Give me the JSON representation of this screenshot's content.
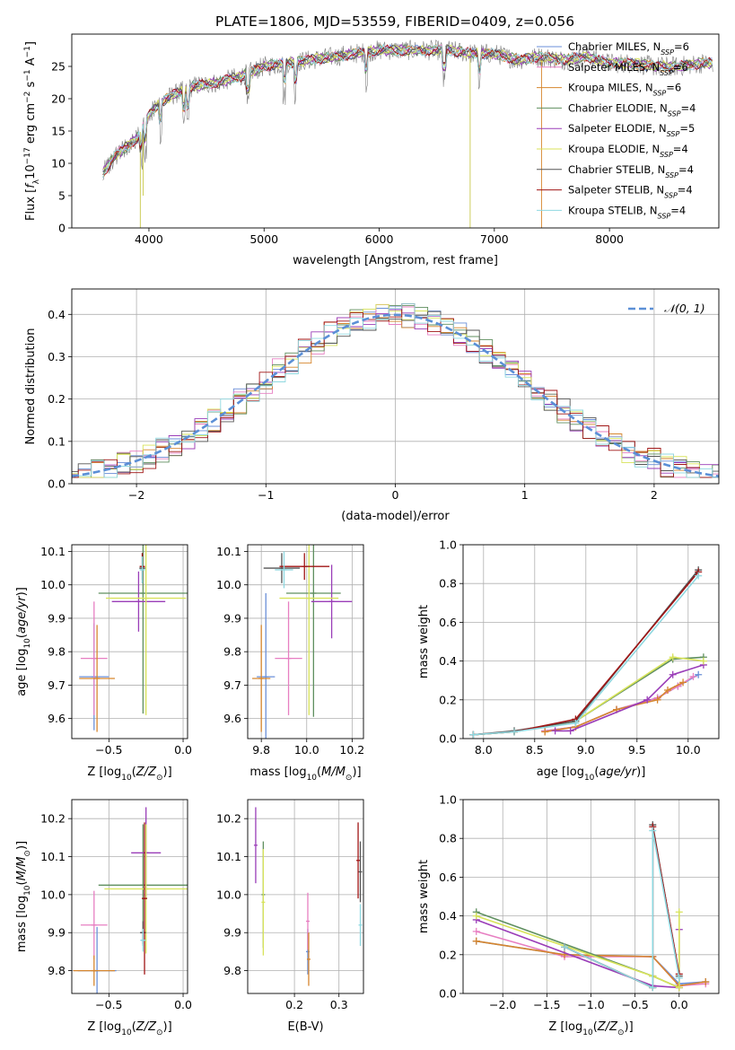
{
  "figure_title": "PLATE=1806, MJD=53559, FIBERID=0409, z=0.056",
  "colors": [
    "#6a8fd8",
    "#e77fc2",
    "#d6862e",
    "#5f8f5f",
    "#9a3db8",
    "#d8e35a",
    "#555555",
    "#a01515",
    "#8fd8e0"
  ],
  "chart_data": [
    {
      "id": "spectrum",
      "type": "line",
      "xlabel": "wavelength [Angstrom, rest frame]",
      "ylabel": "Flux [f_λ 10^-17 erg cm^-2 s^-1 A^-1]",
      "xlim": [
        3330,
        8950
      ],
      "ylim": [
        0,
        30
      ],
      "xticks": [
        4000,
        5000,
        6000,
        7000,
        8000
      ],
      "yticks": [
        0,
        5,
        10,
        15,
        20,
        25
      ],
      "grid": false,
      "legend_position": "top-right",
      "observed_profile": {
        "x": [
          3600,
          3700,
          3800,
          3900,
          4000,
          4100,
          4200,
          4400,
          4600,
          4800,
          5000,
          5200,
          5400,
          5600,
          5800,
          6000,
          6200,
          6400,
          6600,
          6800,
          7000,
          7200,
          7400,
          7600,
          7800,
          8000,
          8200,
          8400,
          8600,
          8800
        ],
        "y": [
          8.5,
          11.0,
          12.5,
          14.0,
          17.5,
          19.5,
          20.5,
          22.0,
          22.5,
          23.5,
          25.0,
          25.5,
          26.0,
          26.5,
          27.0,
          27.5,
          27.5,
          27.5,
          27.5,
          27.0,
          27.0,
          26.0,
          26.5,
          26.0,
          26.5,
          25.5,
          25.5,
          25.0,
          25.0,
          25.5
        ]
      },
      "series": [
        {
          "name": "Chabrier MILES, N_SSP=6",
          "label_main": "Chabrier MILES, N",
          "label_sub": "SSP",
          "label_end": "=6",
          "color": "#6a8fd8"
        },
        {
          "name": "Salpeter MILES, N_SSP=6",
          "label_main": "Salpeter MILES, N",
          "label_sub": "SSP",
          "label_end": "=6",
          "color": "#e77fc2"
        },
        {
          "name": "Kroupa MILES, N_SSP=6",
          "label_main": "Kroupa MILES, N",
          "label_sub": "SSP",
          "label_end": "=6",
          "color": "#d6862e"
        },
        {
          "name": "Chabrier ELODIE, N_SSP=4",
          "label_main": "Chabrier ELODIE, N",
          "label_sub": "SSP",
          "label_end": "=4",
          "color": "#5f8f5f"
        },
        {
          "name": "Salpeter ELODIE, N_SSP=5",
          "label_main": "Salpeter ELODIE, N",
          "label_sub": "SSP",
          "label_end": "=5",
          "color": "#9a3db8"
        },
        {
          "name": "Kroupa ELODIE, N_SSP=4",
          "label_main": "Kroupa ELODIE, N",
          "label_sub": "SSP",
          "label_end": "=4",
          "color": "#d8e35a"
        },
        {
          "name": "Chabrier STELIB, N_SSP=4",
          "label_main": "Chabrier STELIB, N",
          "label_sub": "SSP",
          "label_end": "=4",
          "color": "#555555"
        },
        {
          "name": "Salpeter STELIB, N_SSP=4",
          "label_main": "Salpeter STELIB, N",
          "label_sub": "SSP",
          "label_end": "=4",
          "color": "#a01515"
        },
        {
          "name": "Kroupa STELIB, N_SSP=4",
          "label_main": "Kroupa STELIB, N",
          "label_sub": "SSP",
          "label_end": "=4",
          "color": "#8fd8e0"
        }
      ]
    },
    {
      "id": "residuals",
      "type": "line",
      "xlabel": "(data-model)/error",
      "ylabel": "Normed distribution",
      "xlim": [
        -2.5,
        2.5
      ],
      "ylim": [
        0,
        0.46
      ],
      "xticks": [
        -2,
        -1,
        0,
        1,
        2
      ],
      "yticks": [
        0.0,
        0.1,
        0.2,
        0.3,
        0.4
      ],
      "grid": true,
      "legend_position": "top-right",
      "reference": {
        "name": "N(0,1)",
        "mean": 0,
        "sigma": 1,
        "color": "#5b8fd6"
      },
      "bin_width": 0.1
    },
    {
      "id": "age_vs_Z",
      "type": "scatter",
      "xlabel": "Z [log10(Z/Zsun)]",
      "ylabel": "age [log10(age/yr)]",
      "xlim": [
        -0.75,
        0.03
      ],
      "ylim": [
        9.54,
        10.12
      ],
      "xticks": [
        -0.5,
        0.0
      ],
      "yticks": [
        9.6,
        9.7,
        9.8,
        9.9,
        10.0,
        10.1
      ],
      "grid": true,
      "points": [
        {
          "x": -0.6,
          "y": 9.725,
          "xerr": 0.1,
          "yerr": 0.16,
          "color": "#6a8fd8"
        },
        {
          "x": -0.6,
          "y": 9.78,
          "xerr": 0.09,
          "yerr": 0.17,
          "color": "#e77fc2"
        },
        {
          "x": -0.58,
          "y": 9.72,
          "xerr": 0.12,
          "yerr": 0.16,
          "color": "#d6862e"
        },
        {
          "x": -0.27,
          "y": 9.975,
          "xerr": 0.3,
          "yerr": 0.36,
          "color": "#5f8f5f"
        },
        {
          "x": -0.3,
          "y": 9.95,
          "xerr": 0.18,
          "yerr": 0.09,
          "color": "#9a3db8"
        },
        {
          "x": -0.25,
          "y": 9.96,
          "xerr": 0.27,
          "yerr": 0.35,
          "color": "#d8e35a"
        },
        {
          "x": -0.275,
          "y": 10.05,
          "xerr": 0.02,
          "yerr": 0.045,
          "color": "#555555"
        },
        {
          "x": -0.275,
          "y": 10.055,
          "xerr": 0.015,
          "yerr": 0.04,
          "color": "#a01515"
        },
        {
          "x": -0.275,
          "y": 10.045,
          "xerr": 0.015,
          "yerr": 0.04,
          "color": "#8fd8e0"
        }
      ]
    },
    {
      "id": "age_vs_mass",
      "type": "scatter",
      "xlabel": "mass [log10(M/Msun)]",
      "ylabel": "",
      "xlim": [
        9.74,
        10.25
      ],
      "ylim": [
        9.54,
        10.12
      ],
      "xticks": [
        9.8,
        10.0,
        10.2
      ],
      "yticks": [
        9.6,
        9.7,
        9.8,
        9.9,
        10.0,
        10.1
      ],
      "grid": true,
      "points": [
        {
          "x": 9.82,
          "y": 9.725,
          "xerr": 0.04,
          "yerr": 0.25,
          "color": "#6a8fd8"
        },
        {
          "x": 9.92,
          "y": 9.78,
          "xerr": 0.06,
          "yerr": 0.17,
          "color": "#e77fc2"
        },
        {
          "x": 9.8,
          "y": 9.72,
          "xerr": 0.04,
          "yerr": 0.16,
          "color": "#d6862e"
        },
        {
          "x": 10.03,
          "y": 9.975,
          "xerr": 0.12,
          "yerr": 0.37,
          "color": "#5f8f5f"
        },
        {
          "x": 10.11,
          "y": 9.95,
          "xerr": 0.09,
          "yerr": 0.11,
          "color": "#9a3db8"
        },
        {
          "x": 10.01,
          "y": 9.96,
          "xerr": 0.13,
          "yerr": 0.35,
          "color": "#d8e35a"
        },
        {
          "x": 9.89,
          "y": 10.05,
          "xerr": 0.08,
          "yerr": 0.045,
          "color": "#555555"
        },
        {
          "x": 9.99,
          "y": 10.055,
          "xerr": 0.11,
          "yerr": 0.04,
          "color": "#a01515"
        },
        {
          "x": 9.9,
          "y": 10.045,
          "xerr": 0.04,
          "yerr": 0.055,
          "color": "#8fd8e0"
        }
      ]
    },
    {
      "id": "weight_vs_age",
      "type": "line",
      "xlabel": "age [log10(age/yr)]",
      "ylabel": "mass weight",
      "xlim": [
        7.8,
        10.3
      ],
      "ylim": [
        0,
        1.0
      ],
      "xticks": [
        8.0,
        8.5,
        9.0,
        9.5,
        10.0
      ],
      "yticks": [
        0.0,
        0.2,
        0.4,
        0.6,
        0.8,
        1.0
      ],
      "grid": true,
      "series": [
        {
          "color": "#6a8fd8",
          "x": [
            8.6,
            8.9,
            9.3,
            9.7,
            9.9,
            10.1
          ],
          "y": [
            0.04,
            0.06,
            0.15,
            0.21,
            0.27,
            0.33
          ]
        },
        {
          "color": "#e77fc2",
          "x": [
            8.6,
            8.9,
            9.3,
            9.7,
            9.9,
            10.05
          ],
          "y": [
            0.04,
            0.06,
            0.15,
            0.21,
            0.27,
            0.32
          ]
        },
        {
          "color": "#d6862e",
          "x": [
            8.6,
            8.9,
            9.3,
            9.7,
            9.8,
            9.95
          ],
          "y": [
            0.035,
            0.06,
            0.15,
            0.2,
            0.25,
            0.29
          ]
        },
        {
          "color": "#5f8f5f",
          "x": [
            7.9,
            8.3,
            8.9,
            9.85,
            10.15
          ],
          "y": [
            0.02,
            0.035,
            0.09,
            0.41,
            0.42
          ]
        },
        {
          "color": "#9a3db8",
          "x": [
            8.7,
            8.85,
            9.6,
            9.85,
            10.15
          ],
          "y": [
            0.04,
            0.04,
            0.2,
            0.33,
            0.38
          ]
        },
        {
          "color": "#d8e35a",
          "x": [
            7.9,
            8.3,
            8.9,
            9.85,
            10.15
          ],
          "y": [
            0.02,
            0.035,
            0.09,
            0.42,
            0.4
          ]
        },
        {
          "color": "#555555",
          "x": [
            7.9,
            8.3,
            8.9,
            10.1
          ],
          "y": [
            0.02,
            0.04,
            0.09,
            0.87
          ]
        },
        {
          "color": "#a01515",
          "x": [
            7.9,
            8.3,
            8.9,
            10.1
          ],
          "y": [
            0.02,
            0.035,
            0.1,
            0.86
          ]
        },
        {
          "color": "#8fd8e0",
          "x": [
            7.9,
            8.3,
            8.9,
            10.1
          ],
          "y": [
            0.02,
            0.035,
            0.08,
            0.84
          ]
        }
      ]
    },
    {
      "id": "mass_vs_Z",
      "type": "scatter",
      "xlabel": "Z [log10(Z/Zsun)]",
      "ylabel": "mass [log10(M/Msun)]",
      "xlim": [
        -0.75,
        0.03
      ],
      "ylim": [
        9.74,
        10.25
      ],
      "xticks": [
        -0.5,
        0.0
      ],
      "yticks": [
        9.8,
        9.9,
        10.0,
        10.1,
        10.2
      ],
      "grid": true,
      "points": [
        {
          "x": -0.58,
          "y": 9.8,
          "xerr": 0.13,
          "yerr": 0.115,
          "color": "#6a8fd8"
        },
        {
          "x": -0.6,
          "y": 9.92,
          "xerr": 0.09,
          "yerr": 0.09,
          "color": "#e77fc2"
        },
        {
          "x": -0.6,
          "y": 9.8,
          "xerr": 0.14,
          "yerr": 0.04,
          "color": "#d6862e"
        },
        {
          "x": -0.27,
          "y": 10.025,
          "xerr": 0.3,
          "yerr": 0.16,
          "color": "#5f8f5f"
        },
        {
          "x": -0.25,
          "y": 10.11,
          "xerr": 0.1,
          "yerr": 0.12,
          "color": "#9a3db8"
        },
        {
          "x": -0.25,
          "y": 10.015,
          "xerr": 0.28,
          "yerr": 0.17,
          "color": "#d8e35a"
        },
        {
          "x": -0.27,
          "y": 9.9,
          "xerr": 0.02,
          "yerr": 0.03,
          "color": "#555555"
        },
        {
          "x": -0.26,
          "y": 9.99,
          "xerr": 0.015,
          "yerr": 0.2,
          "color": "#a01515"
        },
        {
          "x": -0.27,
          "y": 9.88,
          "xerr": 0.015,
          "yerr": 0.03,
          "color": "#8fd8e0"
        }
      ]
    },
    {
      "id": "mass_vs_ebv",
      "type": "scatter",
      "xlabel": "E(B-V)",
      "ylabel": "",
      "xlim": [
        0.095,
        0.355
      ],
      "ylim": [
        9.74,
        10.25
      ],
      "xticks": [
        0.2,
        0.3
      ],
      "yticks": [
        9.8,
        9.9,
        10.0,
        10.1,
        10.2
      ],
      "grid": true,
      "points": [
        {
          "x": 0.23,
          "y": 9.85,
          "xerr": 0,
          "yerr": 0.06,
          "color": "#6a8fd8"
        },
        {
          "x": 0.23,
          "y": 9.93,
          "xerr": 0,
          "yerr": 0.075,
          "color": "#e77fc2"
        },
        {
          "x": 0.232,
          "y": 9.83,
          "xerr": 0,
          "yerr": 0.07,
          "color": "#d6862e"
        },
        {
          "x": 0.13,
          "y": 10.0,
          "xerr": 0,
          "yerr": 0.14,
          "color": "#5f8f5f"
        },
        {
          "x": 0.113,
          "y": 10.13,
          "xerr": 0,
          "yerr": 0.1,
          "color": "#9a3db8"
        },
        {
          "x": 0.13,
          "y": 9.98,
          "xerr": 0,
          "yerr": 0.14,
          "color": "#d8e35a"
        },
        {
          "x": 0.348,
          "y": 10.06,
          "xerr": 0,
          "yerr": 0.08,
          "color": "#555555"
        },
        {
          "x": 0.343,
          "y": 10.09,
          "xerr": 0,
          "yerr": 0.1,
          "color": "#a01515"
        },
        {
          "x": 0.348,
          "y": 9.92,
          "xerr": 0,
          "yerr": 0.055,
          "color": "#8fd8e0"
        }
      ]
    },
    {
      "id": "weight_vs_Z",
      "type": "line",
      "xlabel": "Z [log10(Z/Zsun)]",
      "ylabel": "mass weight",
      "xlim": [
        -2.45,
        0.45
      ],
      "ylim": [
        0,
        1.0
      ],
      "xticks": [
        -2.0,
        -1.5,
        -1.0,
        -0.5,
        0.0
      ],
      "yticks": [
        0.0,
        0.2,
        0.4,
        0.6,
        0.8,
        1.0
      ],
      "grid": true,
      "series": [
        {
          "color": "#6a8fd8",
          "x": [
            -2.3,
            -1.3,
            -0.3,
            0.0,
            0.3
          ],
          "y": [
            0.27,
            0.2,
            0.19,
            0.05,
            0.06
          ]
        },
        {
          "color": "#e77fc2",
          "x": [
            -2.3,
            -1.3,
            -0.3,
            0.0,
            0.3
          ],
          "y": [
            0.32,
            0.19,
            0.19,
            0.04,
            0.05
          ]
        },
        {
          "color": "#d6862e",
          "x": [
            -2.3,
            -1.3,
            -0.3,
            0.0,
            0.3
          ],
          "y": [
            0.27,
            0.2,
            0.19,
            0.04,
            0.06
          ]
        },
        {
          "color": "#5f8f5f",
          "x": [
            -2.3,
            -0.3,
            0.0
          ],
          "y": [
            0.42,
            0.09,
            0.03
          ]
        },
        {
          "color": "#9a3db8",
          "x": [
            -2.3,
            -0.3,
            0.0,
            0.0
          ],
          "y": [
            0.38,
            0.04,
            0.03,
            0.33
          ]
        },
        {
          "color": "#d8e35a",
          "x": [
            -2.3,
            -0.3,
            0.0,
            0.0
          ],
          "y": [
            0.4,
            0.09,
            0.03,
            0.42
          ]
        },
        {
          "color": "#555555",
          "x": [
            -1.3,
            -0.3,
            -0.3,
            0.0
          ],
          "y": [
            0.24,
            0.03,
            0.87,
            0.09
          ]
        },
        {
          "color": "#a01515",
          "x": [
            -1.3,
            -0.3,
            -0.3,
            0.0
          ],
          "y": [
            0.24,
            0.03,
            0.86,
            0.1
          ]
        },
        {
          "color": "#8fd8e0",
          "x": [
            -1.3,
            -0.3,
            -0.3,
            0.0
          ],
          "y": [
            0.24,
            0.03,
            0.84,
            0.08
          ]
        }
      ]
    }
  ]
}
